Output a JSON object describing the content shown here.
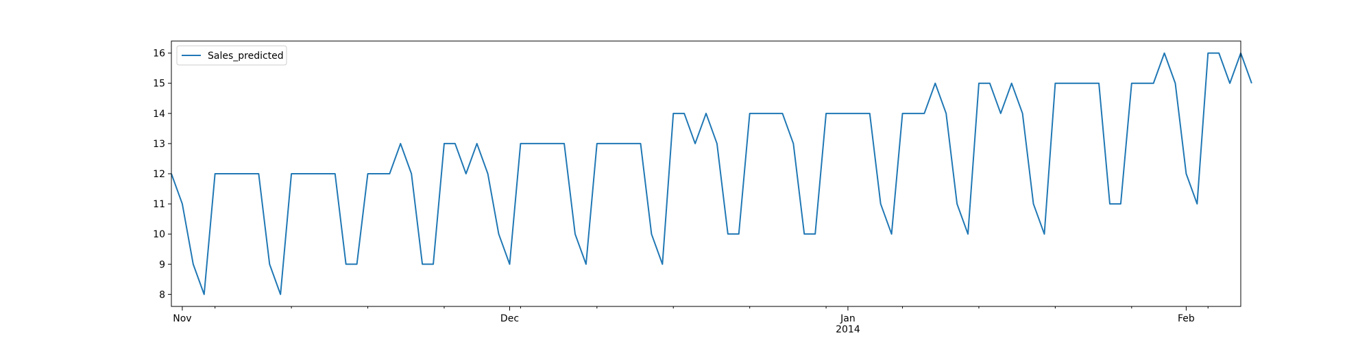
{
  "chart_data": {
    "type": "line",
    "title": "",
    "xlabel": "",
    "ylabel": "",
    "x_start": "2013-10-31",
    "x_end": "2014-02-06",
    "xlim": [
      "2013-10-31",
      "2014-02-06"
    ],
    "ylim": [
      7.6,
      16.4
    ],
    "yticks": [
      8,
      9,
      10,
      11,
      12,
      13,
      14,
      15,
      16
    ],
    "x_major_ticks": [
      {
        "date": "2013-11-01",
        "label": "Nov"
      },
      {
        "date": "2013-12-01",
        "label": "Dec"
      },
      {
        "date": "2014-01-01",
        "label": "Jan",
        "sublabel": "2014"
      },
      {
        "date": "2014-02-01",
        "label": "Feb"
      }
    ],
    "x_minor_tick_dates": [
      "2013-11-04",
      "2013-11-11",
      "2013-11-18",
      "2013-11-25",
      "2013-12-02",
      "2013-12-09",
      "2013-12-16",
      "2013-12-23",
      "2013-12-30",
      "2014-01-06",
      "2014-01-13",
      "2014-01-20",
      "2014-01-27",
      "2014-02-03"
    ],
    "grid": false,
    "legend_position": "top-left",
    "series": [
      {
        "name": "Sales_predicted",
        "color": "#1f77b4",
        "values": [
          12,
          11,
          9,
          8,
          12,
          12,
          12,
          12,
          12,
          9,
          8,
          12,
          12,
          12,
          12,
          12,
          9,
          9,
          12,
          12,
          12,
          13,
          12,
          9,
          9,
          13,
          13,
          12,
          13,
          12,
          10,
          9,
          13,
          13,
          13,
          13,
          13,
          10,
          9,
          13,
          13,
          13,
          13,
          13,
          10,
          9,
          14,
          14,
          13,
          14,
          13,
          10,
          10,
          14,
          14,
          14,
          14,
          13,
          10,
          10,
          14,
          14,
          14,
          14,
          14,
          11,
          10,
          14,
          14,
          14,
          15,
          14,
          11,
          10,
          15,
          15,
          14,
          15,
          14,
          11,
          10,
          15,
          15,
          15,
          15,
          15,
          11,
          11,
          15,
          15,
          15,
          16,
          15,
          12,
          11,
          16,
          16,
          15,
          16,
          15
        ]
      }
    ]
  }
}
